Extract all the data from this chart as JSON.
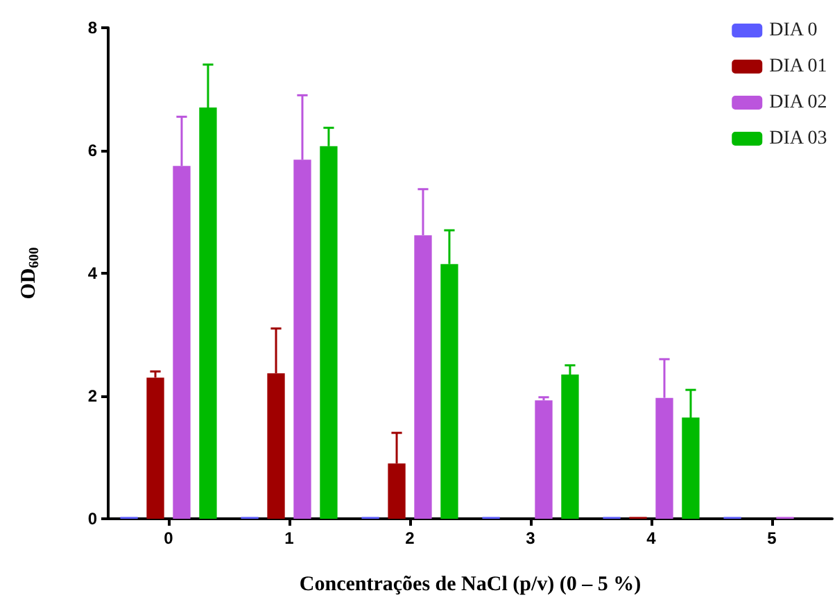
{
  "chart_data": {
    "type": "bar",
    "xlabel": "Concentrações de NaCl (p/v) (0 – 5 %)",
    "ylabel": "OD$_{600}$",
    "categories": [
      "0",
      "1",
      "2",
      "3",
      "4",
      "5"
    ],
    "series": [
      {
        "name": "DIA 0",
        "color": "#5b5bff",
        "values": [
          0.03,
          0.03,
          0.03,
          0.03,
          0.03,
          0.03
        ]
      },
      {
        "name": "DIA 01",
        "color": "#a00000",
        "values": [
          2.3,
          2.37,
          0.9,
          0,
          0.03,
          0
        ],
        "errors": [
          [
            2.3,
            2.4
          ],
          [
            2.37,
            3.1
          ],
          [
            0.9,
            1.4
          ],
          null,
          null,
          null
        ]
      },
      {
        "name": "DIA 02",
        "color": "#bb55dd",
        "values": [
          5.75,
          5.85,
          4.62,
          1.93,
          1.97,
          0.03
        ],
        "errors": [
          [
            5.75,
            6.55
          ],
          [
            5.85,
            6.9
          ],
          [
            4.62,
            5.37
          ],
          [
            1.93,
            1.98
          ],
          [
            1.97,
            2.6
          ],
          null
        ]
      },
      {
        "name": "DIA 03",
        "color": "#00bb00",
        "values": [
          6.7,
          6.07,
          4.15,
          2.35,
          1.65,
          0
        ],
        "errors": [
          [
            6.7,
            7.4
          ],
          [
            6.07,
            6.37
          ],
          [
            4.15,
            4.7
          ],
          [
            2.35,
            2.5
          ],
          [
            1.65,
            2.1
          ],
          null
        ]
      }
    ],
    "ylim": [
      0,
      8
    ],
    "yticks": [
      0,
      2,
      4,
      6,
      8
    ],
    "grid": false,
    "legend": "top right"
  }
}
